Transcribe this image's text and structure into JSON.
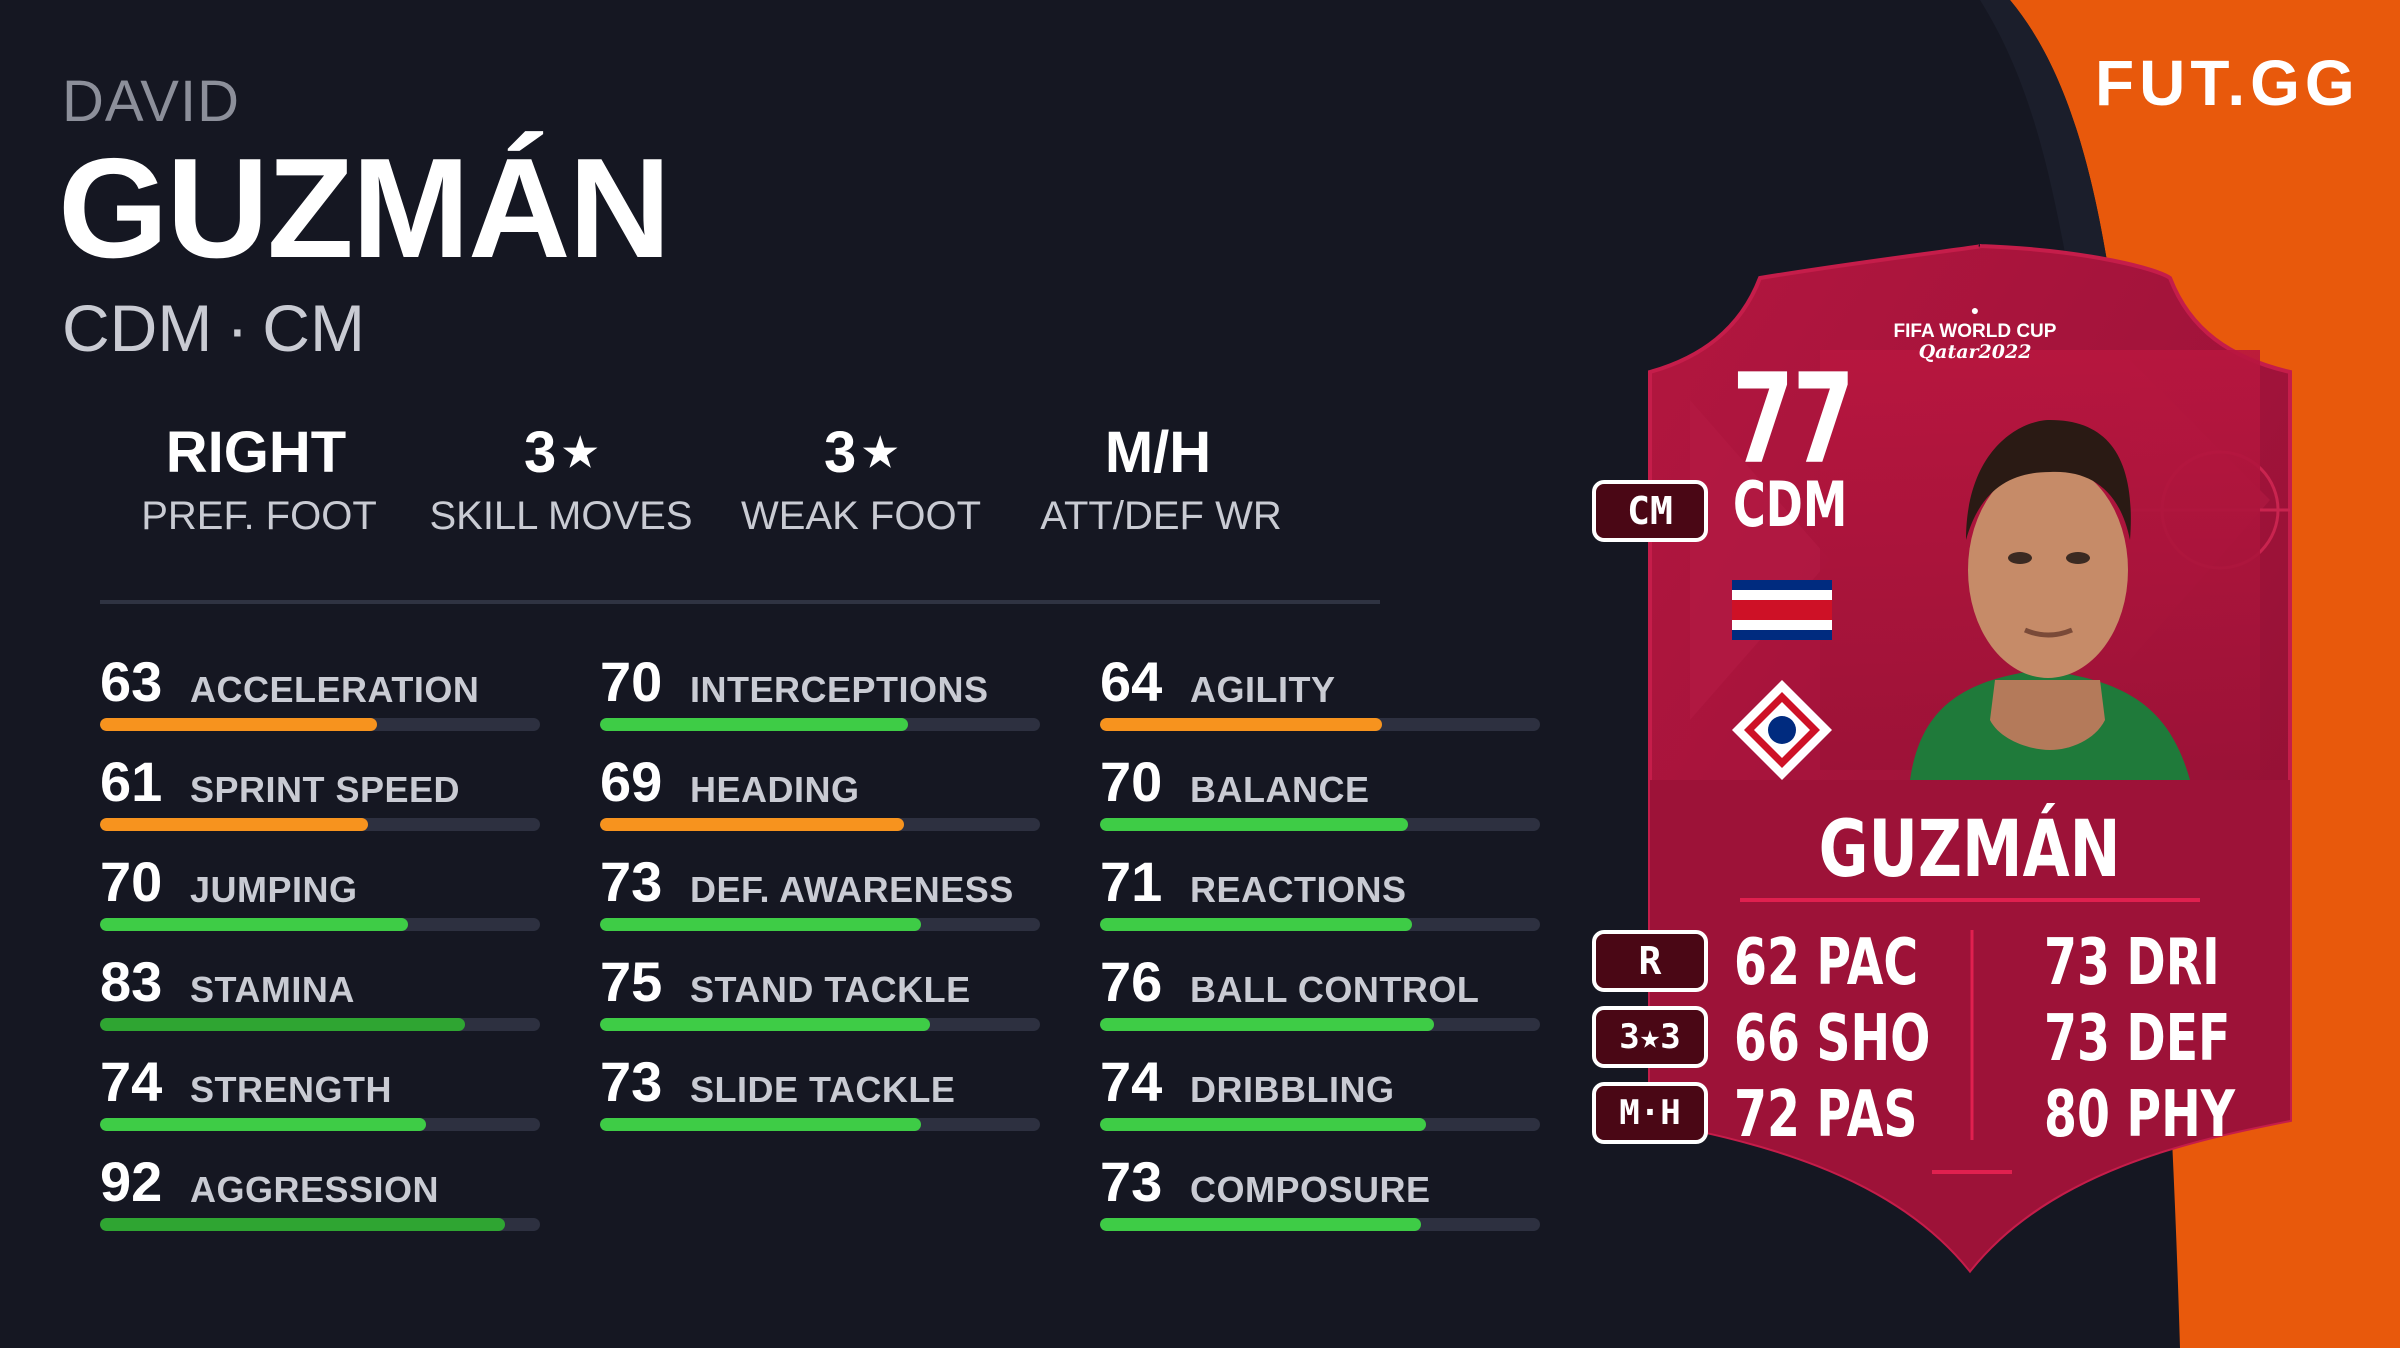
{
  "player": {
    "first_name": "DAVID",
    "last_name": "GUZMÁN",
    "positions": [
      "CDM",
      "CM"
    ]
  },
  "info": [
    {
      "value": "RIGHT",
      "star": "",
      "label": "PREF. FOOT"
    },
    {
      "value": "3",
      "star": "★",
      "label": "SKILL MOVES"
    },
    {
      "value": "3",
      "star": "★",
      "label": "WEAK FOOT"
    },
    {
      "value": "M/H",
      "star": "",
      "label": "ATT/DEF WR"
    }
  ],
  "stats": [
    [
      {
        "value": 63,
        "name": "ACCELERATION"
      },
      {
        "value": 61,
        "name": "SPRINT SPEED"
      },
      {
        "value": 70,
        "name": "JUMPING"
      },
      {
        "value": 83,
        "name": "STAMINA"
      },
      {
        "value": 74,
        "name": "STRENGTH"
      },
      {
        "value": 92,
        "name": "AGGRESSION"
      }
    ],
    [
      {
        "value": 70,
        "name": "INTERCEPTIONS"
      },
      {
        "value": 69,
        "name": "HEADING"
      },
      {
        "value": 73,
        "name": "DEF. AWARENESS"
      },
      {
        "value": 75,
        "name": "STAND TACKLE"
      },
      {
        "value": 73,
        "name": "SLIDE TACKLE"
      }
    ],
    [
      {
        "value": 64,
        "name": "AGILITY"
      },
      {
        "value": 70,
        "name": "BALANCE"
      },
      {
        "value": 71,
        "name": "REACTIONS"
      },
      {
        "value": 76,
        "name": "BALL CONTROL"
      },
      {
        "value": 74,
        "name": "DRIBBLING"
      },
      {
        "value": 73,
        "name": "COMPOSURE"
      }
    ]
  ],
  "colors": {
    "bar_orange": "#f7931e",
    "bar_green": "#3ecc46",
    "bar_dark_green": "#2fa532",
    "brand_orange": "#e8590c",
    "card_red": "#a0133a"
  },
  "brand": {
    "logo": "FUT.GG"
  },
  "card": {
    "rating": "77",
    "position": "CDM",
    "alt_position": "CM",
    "name": "GUZMÁN",
    "event_logo_line1": "FIFA WORLD CUP",
    "event_logo_line2": "Qatar2022",
    "foot": "R",
    "skill_weak": "3★3",
    "workrates": "M·H",
    "nation_flag": "costa-rica-flag",
    "club_badge": "costa-rica-crest",
    "face_stats": [
      {
        "value": "62",
        "label": "PAC"
      },
      {
        "value": "66",
        "label": "SHO"
      },
      {
        "value": "72",
        "label": "PAS"
      },
      {
        "value": "73",
        "label": "DRI"
      },
      {
        "value": "73",
        "label": "DEF"
      },
      {
        "value": "80",
        "label": "PHY"
      }
    ]
  }
}
